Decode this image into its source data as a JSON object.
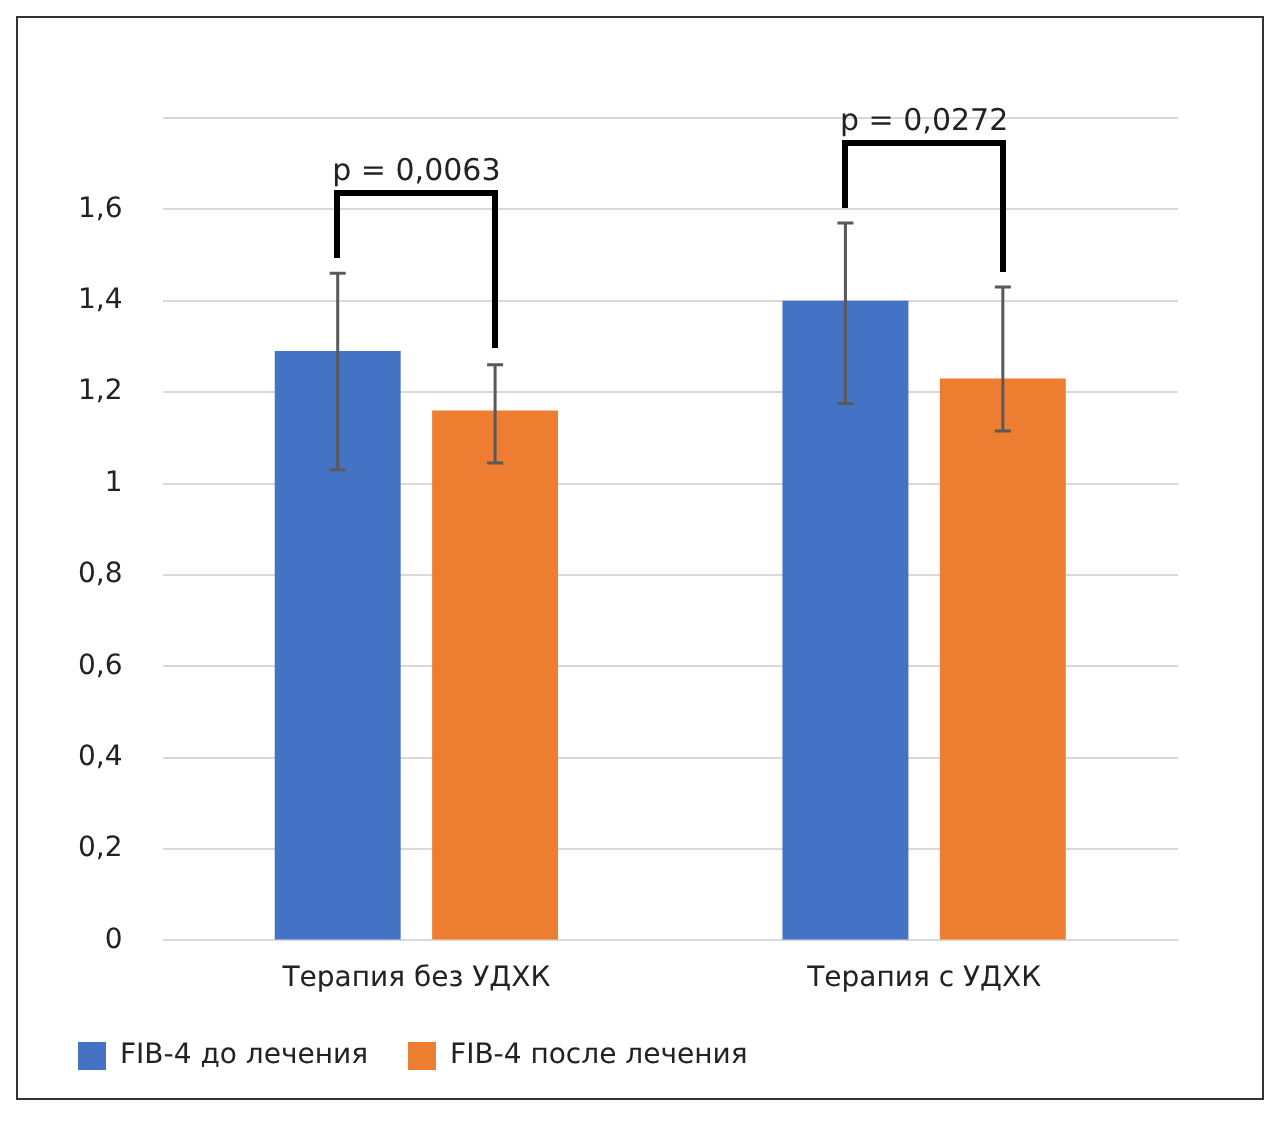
{
  "chart_data": {
    "type": "bar",
    "categories": [
      "Терапия без УДХК",
      "Терапия с УДХК"
    ],
    "series": [
      {
        "name": "FIB-4 до лечения",
        "color": "#4472c4",
        "values": [
          1.29,
          1.4
        ],
        "errors": [
          [
            1.03,
            1.46
          ],
          [
            1.175,
            1.57
          ]
        ]
      },
      {
        "name": "FIB-4 после лечения",
        "color": "#ed7d31",
        "values": [
          1.16,
          1.23
        ],
        "errors": [
          [
            1.045,
            1.26
          ],
          [
            1.115,
            1.43
          ]
        ]
      }
    ],
    "annotations": [
      "p = 0,0063",
      "p = 0,0272"
    ],
    "ylim": [
      0,
      1.8
    ],
    "yticks": [
      0,
      {
        "value": 0.2,
        "label": "0,2"
      },
      {
        "value": 0.4,
        "label": "0,4"
      },
      {
        "value": 0.6,
        "label": "0,6"
      },
      {
        "value": 0.8,
        "label": "0,8"
      },
      1,
      {
        "value": 1.2,
        "label": "1,2"
      },
      {
        "value": 1.4,
        "label": "1,4"
      },
      {
        "value": 1.6,
        "label": "1,6"
      },
      {
        "value": 1.8,
        "label": null
      }
    ],
    "grid": "y",
    "legend": "bottom"
  }
}
